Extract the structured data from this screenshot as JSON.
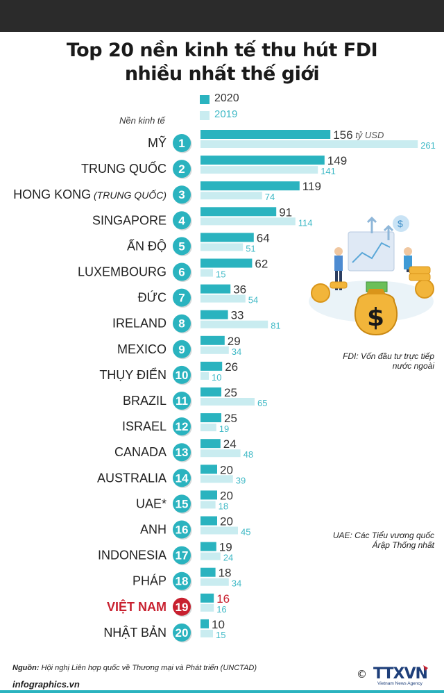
{
  "title_line1": "Top 20 nền kinh tế thu hút FDI",
  "title_line2": "nhiều nhất thế giới",
  "legend": {
    "label_2020": "2020",
    "label_2019": "2019"
  },
  "economy_axis_label": "Nền kinh tế",
  "unit_label": "tỷ USD",
  "note_fdi": "FDI: Vốn đầu tư trực tiếp nước ngoài",
  "note_uae": "UAE: Các Tiểu vương quốc Árập Thống nhất",
  "source_prefix": "Nguồn:",
  "source_text": "Hội nghị Liên hợp quốc về Thương mại và Phát triển (UNCTAD)",
  "site": "infographics.vn",
  "logo_text": "TTXVN",
  "logo_subtext": "Vietnam News Agency",
  "copyright": "©",
  "colors": {
    "bar_2020": "#2ab3bf",
    "bar_2019": "#c9ecf0",
    "rank_circle": "#2ab3bf",
    "highlight": "#c8202f",
    "topbar": "#2b2b2b"
  },
  "chart_data": {
    "type": "bar",
    "orientation": "horizontal",
    "title": "Top 20 nền kinh tế thu hút FDI nhiều nhất thế giới",
    "unit": "tỷ USD",
    "highlight_category": "VIỆT NAM",
    "categories": [
      {
        "rank": "1",
        "name": "MỸ",
        "suffix": ""
      },
      {
        "rank": "2",
        "name": "TRUNG QUỐC",
        "suffix": ""
      },
      {
        "rank": "3",
        "name": "HONG KONG",
        "suffix": "(TRUNG QUỐC)"
      },
      {
        "rank": "4",
        "name": "SINGAPORE",
        "suffix": ""
      },
      {
        "rank": "5",
        "name": "ẤN ĐỘ",
        "suffix": ""
      },
      {
        "rank": "6",
        "name": "LUXEMBOURG",
        "suffix": ""
      },
      {
        "rank": "7",
        "name": "ĐỨC",
        "suffix": ""
      },
      {
        "rank": "8",
        "name": "IRELAND",
        "suffix": ""
      },
      {
        "rank": "9",
        "name": "MEXICO",
        "suffix": ""
      },
      {
        "rank": "10",
        "name": "THỤY ĐIỂN",
        "suffix": ""
      },
      {
        "rank": "11",
        "name": "BRAZIL",
        "suffix": ""
      },
      {
        "rank": "12",
        "name": "ISRAEL",
        "suffix": ""
      },
      {
        "rank": "13",
        "name": "CANADA",
        "suffix": ""
      },
      {
        "rank": "14",
        "name": "AUSTRALIA",
        "suffix": ""
      },
      {
        "rank": "15",
        "name": "UAE*",
        "suffix": ""
      },
      {
        "rank": "16",
        "name": "ANH",
        "suffix": ""
      },
      {
        "rank": "17",
        "name": "INDONESIA",
        "suffix": ""
      },
      {
        "rank": "18",
        "name": "PHÁP",
        "suffix": ""
      },
      {
        "rank": "19",
        "name": "VIỆT NAM",
        "suffix": ""
      },
      {
        "rank": "20",
        "name": "NHẬT BẢN",
        "suffix": ""
      }
    ],
    "series": [
      {
        "name": "2020",
        "values": [
          156,
          149,
          119,
          91,
          64,
          62,
          36,
          33,
          29,
          26,
          25,
          25,
          24,
          20,
          20,
          20,
          19,
          18,
          16,
          10
        ]
      },
      {
        "name": "2019",
        "values": [
          261,
          141,
          74,
          114,
          51,
          15,
          54,
          81,
          34,
          10,
          65,
          19,
          48,
          39,
          18,
          45,
          24,
          34,
          16,
          15
        ]
      }
    ]
  }
}
